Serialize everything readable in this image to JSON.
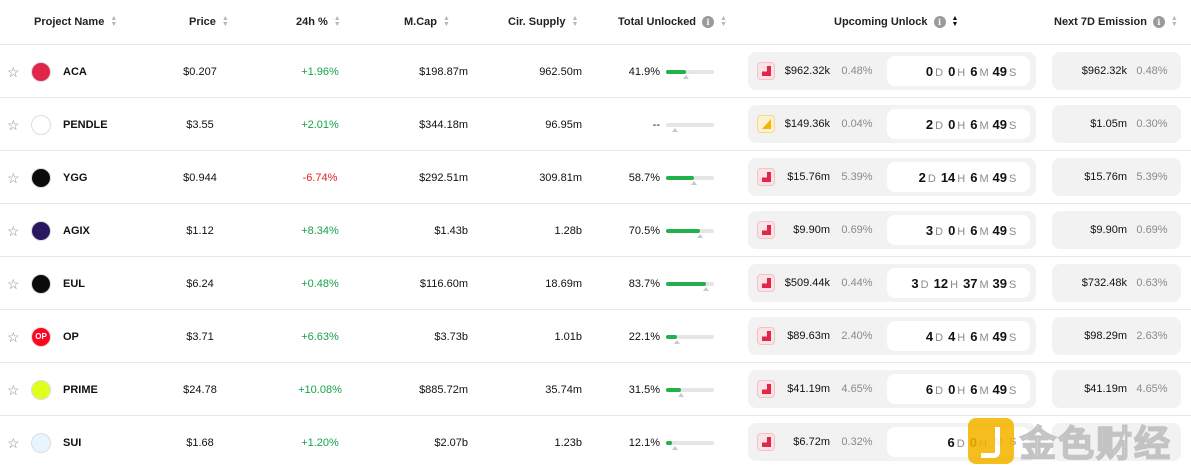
{
  "columns": {
    "project_name": "Project Name",
    "price": "Price",
    "change_24h": "24h %",
    "mcap": "M.Cap",
    "cir_supply": "Cir. Supply",
    "total_unlocked": "Total Unlocked",
    "upcoming_unlock": "Upcoming Unlock",
    "next_7d_emission": "Next 7D Emission"
  },
  "units": {
    "d": "D",
    "h": "H",
    "m": "M",
    "s": "S"
  },
  "colors": {
    "positive": "#16a34a",
    "negative": "#dc2626",
    "progress": "#22b14c",
    "unlock_icon": "#e0264a"
  },
  "rows": [
    {
      "symbol": "ACA",
      "logo_icon": "aca-logo-icon",
      "logo_color": "#e0264a",
      "price": "$0.207",
      "change": "+1.96%",
      "dir": "pos",
      "mcap": "$198.87m",
      "supply": "962.50m",
      "unlocked": "41.9%",
      "unlocked_frac": 0.419,
      "up_amount": "$962.32k",
      "up_pct": "0.48%",
      "icon": "red",
      "d": "0",
      "h": "0",
      "m": "6",
      "s": "49",
      "em_amount": "$962.32k",
      "em_pct": "0.48%"
    },
    {
      "symbol": "PENDLE",
      "logo_icon": "pendle-logo-icon",
      "logo_color": "#ffffff",
      "price": "$3.55",
      "change": "+2.01%",
      "dir": "pos",
      "mcap": "$344.18m",
      "supply": "96.95m",
      "unlocked": "--",
      "unlocked_frac": 0,
      "up_amount": "$149.36k",
      "up_pct": "0.04%",
      "icon": "yellow",
      "d": "2",
      "h": "0",
      "m": "6",
      "s": "49",
      "em_amount": "$1.05m",
      "em_pct": "0.30%"
    },
    {
      "symbol": "YGG",
      "logo_icon": "ygg-logo-icon",
      "logo_color": "#0b0b0b",
      "price": "$0.944",
      "change": "-6.74%",
      "dir": "neg",
      "mcap": "$292.51m",
      "supply": "309.81m",
      "unlocked": "58.7%",
      "unlocked_frac": 0.587,
      "up_amount": "$15.76m",
      "up_pct": "5.39%",
      "icon": "red",
      "d": "2",
      "h": "14",
      "m": "6",
      "s": "49",
      "em_amount": "$15.76m",
      "em_pct": "5.39%"
    },
    {
      "symbol": "AGIX",
      "logo_icon": "agix-logo-icon",
      "logo_color": "#2b1760",
      "price": "$1.12",
      "change": "+8.34%",
      "dir": "pos",
      "mcap": "$1.43b",
      "supply": "1.28b",
      "unlocked": "70.5%",
      "unlocked_frac": 0.705,
      "up_amount": "$9.90m",
      "up_pct": "0.69%",
      "icon": "red",
      "d": "3",
      "h": "0",
      "m": "6",
      "s": "49",
      "em_amount": "$9.90m",
      "em_pct": "0.69%"
    },
    {
      "symbol": "EUL",
      "logo_icon": "eul-logo-icon",
      "logo_color": "#0b0b0b",
      "price": "$6.24",
      "change": "+0.48%",
      "dir": "pos",
      "mcap": "$116.60m",
      "supply": "18.69m",
      "unlocked": "83.7%",
      "unlocked_frac": 0.837,
      "up_amount": "$509.44k",
      "up_pct": "0.44%",
      "icon": "red",
      "d": "3",
      "h": "12",
      "m": "37",
      "s": "39",
      "em_amount": "$732.48k",
      "em_pct": "0.63%"
    },
    {
      "symbol": "OP",
      "logo_icon": "op-logo-icon",
      "logo_color": "#ff0420",
      "logo_text": "OP",
      "price": "$3.71",
      "change": "+6.63%",
      "dir": "pos",
      "mcap": "$3.73b",
      "supply": "1.01b",
      "unlocked": "22.1%",
      "unlocked_frac": 0.221,
      "up_amount": "$89.63m",
      "up_pct": "2.40%",
      "icon": "red",
      "d": "4",
      "h": "4",
      "m": "6",
      "s": "49",
      "em_amount": "$98.29m",
      "em_pct": "2.63%"
    },
    {
      "symbol": "PRIME",
      "logo_icon": "prime-logo-icon",
      "logo_color": "#dfff1c",
      "price": "$24.78",
      "change": "+10.08%",
      "dir": "pos",
      "mcap": "$885.72m",
      "supply": "35.74m",
      "unlocked": "31.5%",
      "unlocked_frac": 0.315,
      "up_amount": "$41.19m",
      "up_pct": "4.65%",
      "icon": "red",
      "d": "6",
      "h": "0",
      "m": "6",
      "s": "49",
      "em_amount": "$41.19m",
      "em_pct": "4.65%"
    },
    {
      "symbol": "SUI",
      "logo_icon": "sui-logo-icon",
      "logo_color": "#e8f4ff",
      "price": "$1.68",
      "change": "+1.20%",
      "dir": "pos",
      "mcap": "$2.07b",
      "supply": "1.23b",
      "unlocked": "12.1%",
      "unlocked_frac": 0.121,
      "up_amount": "$6.72m",
      "up_pct": "0.32%",
      "icon": "red",
      "d": "6",
      "h": "0",
      "m": "",
      "s": "",
      "em_amount": "",
      "em_pct": ""
    }
  ],
  "watermark": {
    "text": "金色财经"
  }
}
